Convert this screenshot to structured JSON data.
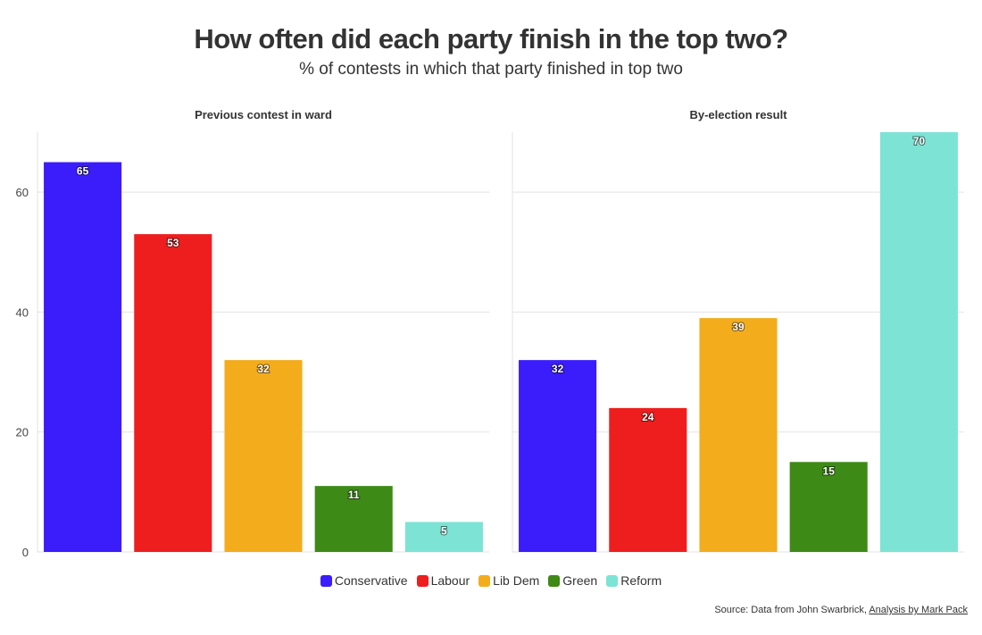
{
  "title": "How often did each party finish in the top two?",
  "subtitle": "% of contests in which that party finished in top two",
  "source": {
    "text": "Source: Data from John Swarbrick, ",
    "link": "Analysis by Mark Pack"
  },
  "colors": {
    "Conservative": "#3b1cfb",
    "Labour": "#ee1e1e",
    "Lib Dem": "#f3ac1c",
    "Green": "#3e8a17",
    "Reform": "#7de3d5"
  },
  "legend": [
    "Conservative",
    "Labour",
    "Lib Dem",
    "Green",
    "Reform"
  ],
  "chart_data": [
    {
      "type": "bar",
      "title": "Previous contest in ward",
      "categories": [
        "Conservative",
        "Labour",
        "Lib Dem",
        "Green",
        "Reform"
      ],
      "values": [
        65,
        53,
        32,
        11,
        5
      ],
      "ylim": [
        0,
        70
      ],
      "yticks": [
        "0",
        "20",
        "40",
        "60"
      ],
      "grid": true,
      "legend_position": "bottom"
    },
    {
      "type": "bar",
      "title": "By-election result",
      "categories": [
        "Conservative",
        "Labour",
        "Lib Dem",
        "Green",
        "Reform"
      ],
      "values": [
        32,
        24,
        39,
        15,
        70
      ],
      "ylim": [
        0,
        70
      ],
      "grid": true,
      "legend_position": "bottom"
    }
  ]
}
